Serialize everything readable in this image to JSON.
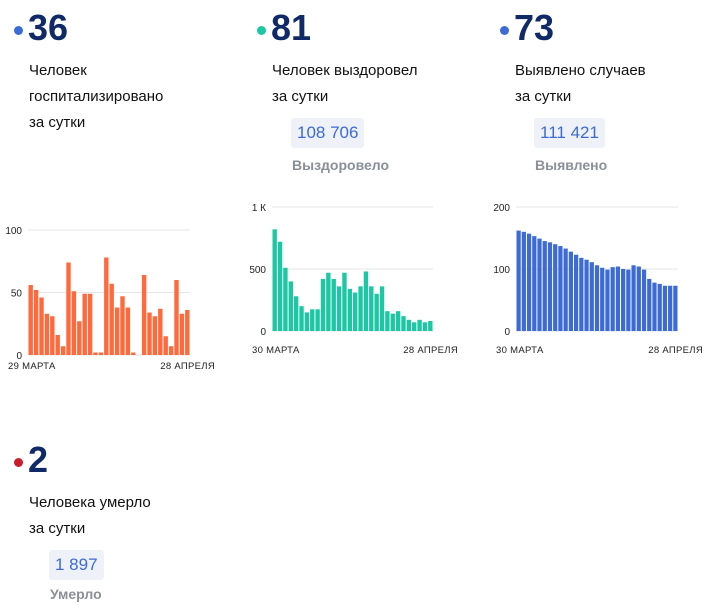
{
  "cards": [
    {
      "id": "hospitalized",
      "dot_color": "#3d6bd6",
      "number": "36",
      "desc_lines": [
        "Человек",
        "госпитализировано",
        "за сутки"
      ]
    },
    {
      "id": "recovered",
      "dot_color": "#1cc7a4",
      "number": "81",
      "desc_lines": [
        "Человек выздоровел",
        "за сутки"
      ],
      "total": "108 706",
      "total_label": "Выздоровело"
    },
    {
      "id": "cases",
      "dot_color": "#3d6bd6",
      "number": "73",
      "desc_lines": [
        "Выявлено случаев",
        "за сутки"
      ],
      "total": "111 421",
      "total_label": "Выявлено"
    },
    {
      "id": "deaths",
      "dot_color": "#c81d2a",
      "number": "2",
      "desc_lines": [
        "Человека умерло",
        "за сутки"
      ],
      "total": "1 897",
      "total_label": "Умерло"
    }
  ],
  "chart_data": [
    {
      "type": "bar",
      "series_color": "#ff6a3d",
      "x_start_label": "29 МАРТА",
      "x_end_label": "28 АПРЕЛЯ",
      "y_ticks": [
        "0",
        "50",
        "100"
      ],
      "ylim": [
        0,
        100
      ],
      "values": [
        56,
        52,
        46,
        33,
        31,
        16,
        7,
        74,
        51,
        27,
        49,
        49,
        2,
        2,
        78,
        57,
        38,
        47,
        38,
        2,
        0,
        64,
        34,
        31,
        37,
        15,
        7,
        60,
        33,
        36
      ]
    },
    {
      "type": "bar",
      "series_color": "#1cc7a4",
      "x_start_label": "30 МАРТА",
      "x_end_label": "28 АПРЕЛЯ",
      "y_ticks": [
        "0",
        "500",
        "1 К"
      ],
      "ylim": [
        0,
        1000
      ],
      "values": [
        820,
        720,
        510,
        400,
        280,
        200,
        150,
        175,
        175,
        420,
        470,
        420,
        360,
        470,
        340,
        310,
        360,
        480,
        360,
        300,
        360,
        160,
        140,
        160,
        120,
        90,
        70,
        90,
        70,
        81
      ]
    },
    {
      "type": "bar",
      "series_color": "#3d6bd6",
      "x_start_label": "30 МАРТА",
      "x_end_label": "28 АПРЕЛЯ",
      "y_ticks": [
        "0",
        "100",
        "200"
      ],
      "ylim": [
        0,
        200
      ],
      "values": [
        162,
        160,
        157,
        153,
        149,
        145,
        143,
        140,
        137,
        133,
        128,
        123,
        118,
        115,
        111,
        106,
        102,
        99,
        103,
        104,
        100,
        99,
        106,
        104,
        99,
        84,
        78,
        76,
        73,
        73,
        73
      ]
    }
  ]
}
